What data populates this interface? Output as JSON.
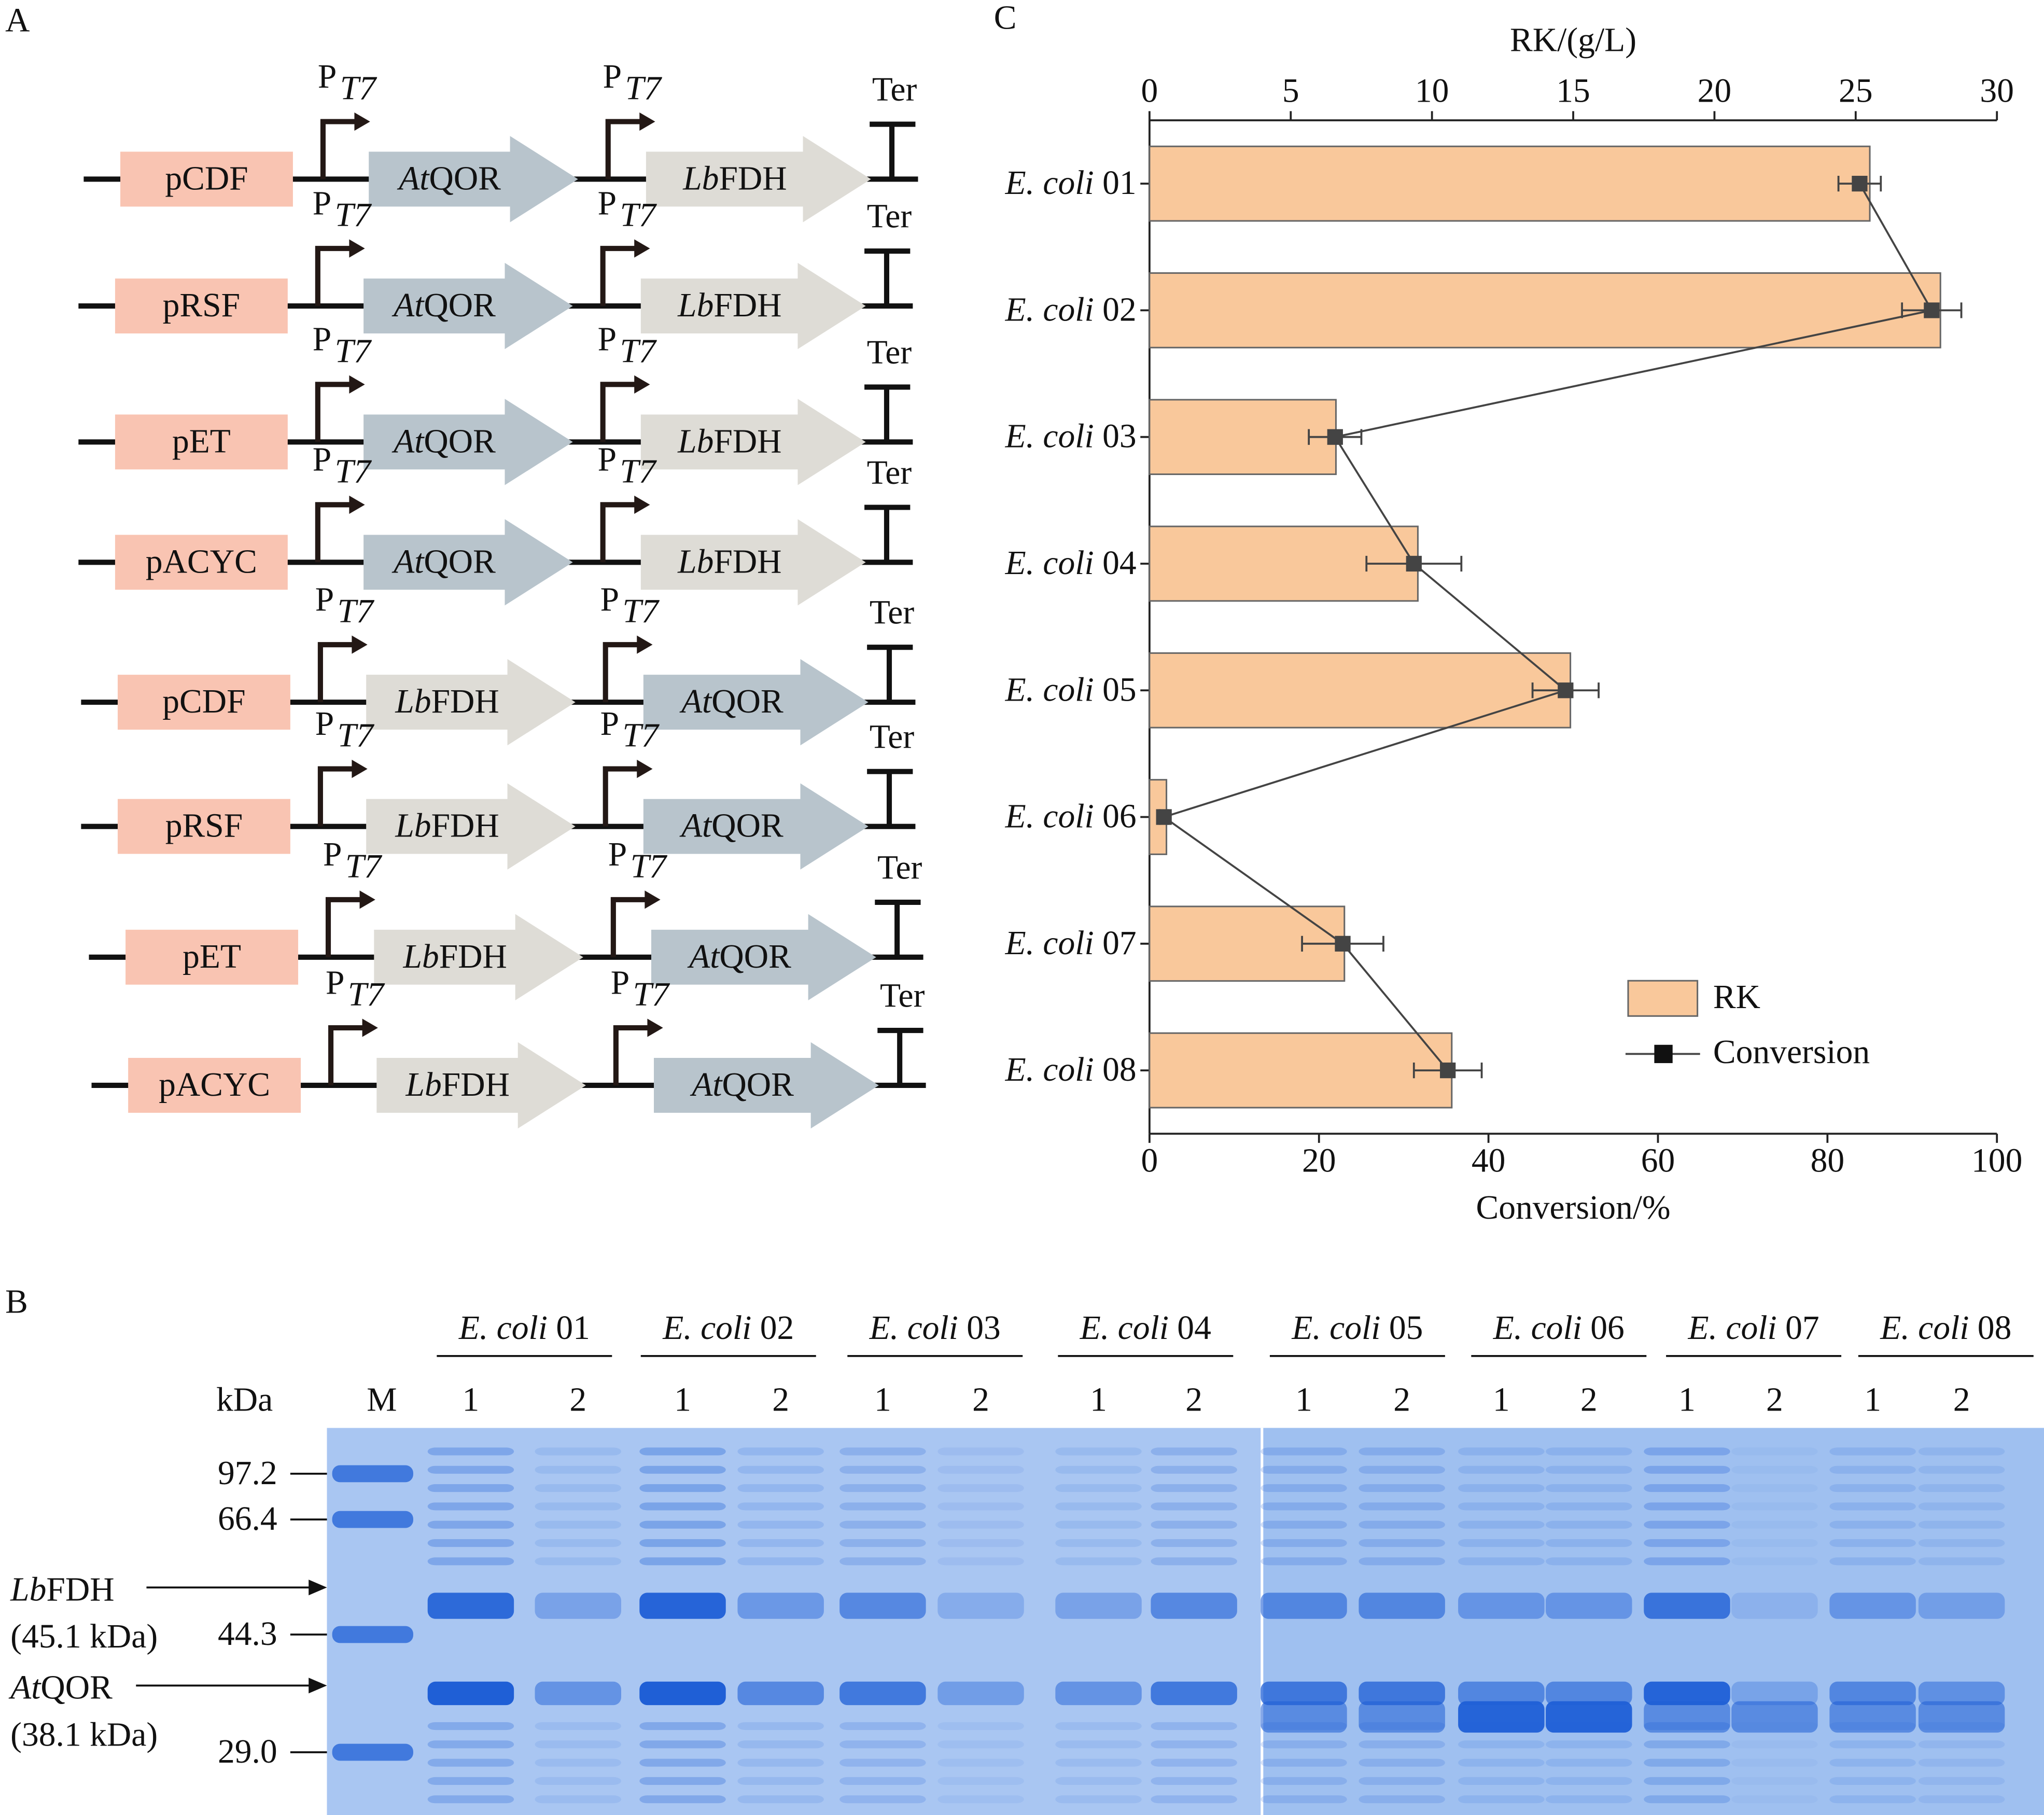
{
  "panel_labels": {
    "a": "A",
    "b": "B",
    "c": "C"
  },
  "panel_a": {
    "promoter": "P",
    "promoter_subscript": "T7",
    "terminator": "Ter",
    "constructs": [
      {
        "plasmid": "pCDF",
        "genes": [
          "AtQOR",
          "LbFDH"
        ]
      },
      {
        "plasmid": "pRSF",
        "genes": [
          "AtQOR",
          "LbFDH"
        ]
      },
      {
        "plasmid": "pET",
        "genes": [
          "AtQOR",
          "LbFDH"
        ]
      },
      {
        "plasmid": "pACYC",
        "genes": [
          "AtQOR",
          "LbFDH"
        ]
      },
      {
        "plasmid": "pCDF",
        "genes": [
          "LbFDH",
          "AtQOR"
        ]
      },
      {
        "plasmid": "pRSF",
        "genes": [
          "LbFDH",
          "AtQOR"
        ]
      },
      {
        "plasmid": "pET",
        "genes": [
          "LbFDH",
          "AtQOR"
        ]
      },
      {
        "plasmid": "pACYC",
        "genes": [
          "LbFDH",
          "AtQOR"
        ]
      }
    ]
  },
  "panel_b": {
    "unit": "kDa",
    "marker_lane": "M",
    "marker_sizes": [
      "97.2",
      "66.4",
      "44.3",
      "29.0"
    ],
    "strains": [
      {
        "name": "E. coli 01",
        "lanes": [
          "1",
          "2"
        ]
      },
      {
        "name": "E. coli 02",
        "lanes": [
          "1",
          "2"
        ]
      },
      {
        "name": "E. coli 03",
        "lanes": [
          "1",
          "2"
        ]
      },
      {
        "name": "E. coli 04",
        "lanes": [
          "1",
          "2"
        ]
      },
      {
        "name": "E. coli 05",
        "lanes": [
          "1",
          "2"
        ]
      },
      {
        "name": "E. coli 06",
        "lanes": [
          "1",
          "2"
        ]
      },
      {
        "name": "E. coli 07",
        "lanes": [
          "1",
          "2"
        ]
      },
      {
        "name": "E. coli 08",
        "lanes": [
          "1",
          "2"
        ]
      }
    ],
    "annotations": [
      {
        "protein": "LbFDH",
        "size": "(45.1 kDa)"
      },
      {
        "protein": "AtQOR",
        "size": "(38.1 kDa)"
      }
    ]
  },
  "chart_data": {
    "type": "bar",
    "orientation": "horizontal",
    "xlabel": "RK/(g/L)",
    "x2label": "Conversion/%",
    "categories": [
      "E. coli 01",
      "E. coli 02",
      "E. coli 03",
      "E. coli 04",
      "E. coli 05",
      "E. coli 06",
      "E. coli 07",
      "E. coli 08"
    ],
    "xlim": [
      0,
      30
    ],
    "xticks": [
      0,
      5,
      10,
      15,
      20,
      25,
      30
    ],
    "x2lim": [
      0,
      100
    ],
    "x2ticks": [
      0,
      20,
      40,
      60,
      80,
      100
    ],
    "legend": "lower right",
    "series": [
      {
        "name": "RK",
        "type": "bar",
        "color": "#f9c89b",
        "values": [
          25.5,
          28.0,
          6.6,
          9.5,
          14.9,
          0.6,
          6.9,
          10.7
        ]
      },
      {
        "name": "Conversion",
        "type": "line",
        "axis": "x2",
        "color": "#444444",
        "values": [
          83.8,
          92.3,
          21.9,
          31.2,
          49.1,
          1.7,
          22.8,
          35.2
        ],
        "errors": [
          2.5,
          3.5,
          3.1,
          5.6,
          3.9,
          0.5,
          4.8,
          4.0
        ]
      }
    ]
  }
}
